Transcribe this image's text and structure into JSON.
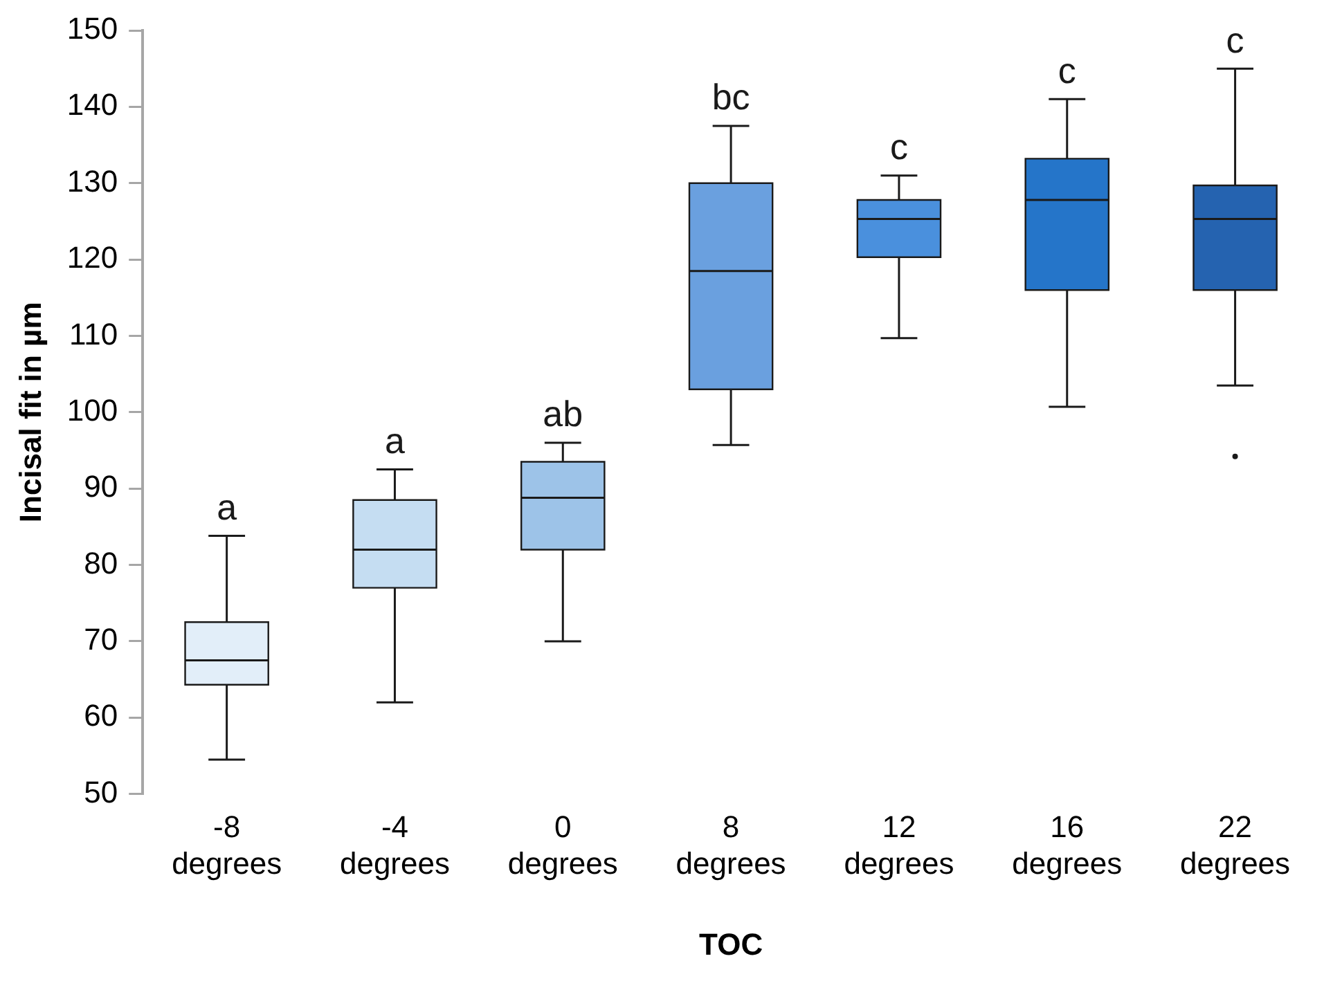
{
  "chart_data": {
    "type": "box",
    "xlabel": "TOC",
    "ylabel": "Incisal fit in µm",
    "categories": [
      "-8 degrees",
      "-4 degrees",
      "0 degrees",
      "8 degrees",
      "12 degrees",
      "16 degrees",
      "22 degrees"
    ],
    "colors": [
      "#e2eef9",
      "#c5ddf2",
      "#9dc3e8",
      "#6aa0df",
      "#4a90dd",
      "#2575c9",
      "#2563b0"
    ],
    "boxes": [
      {
        "low": 54.5,
        "q1": 64.3,
        "median": 67.5,
        "q3": 72.5,
        "high": 83.8
      },
      {
        "low": 62,
        "q1": 77,
        "median": 82,
        "q3": 88.5,
        "high": 92.5
      },
      {
        "low": 70,
        "q1": 82,
        "median": 88.8,
        "q3": 93.5,
        "high": 96
      },
      {
        "low": 95.7,
        "q1": 103,
        "median": 118.5,
        "q3": 130,
        "high": 137.5
      },
      {
        "low": 109.7,
        "q1": 120.3,
        "median": 125.3,
        "q3": 127.8,
        "high": 131
      },
      {
        "low": 100.7,
        "q1": 116,
        "median": 127.8,
        "q3": 133.2,
        "high": 141
      },
      {
        "low": 103.5,
        "q1": 116,
        "median": 125.3,
        "q3": 129.7,
        "high": 145,
        "outliers": [
          94.2
        ]
      }
    ],
    "annotations": [
      "a",
      "a",
      "ab",
      "bc",
      "c",
      "c",
      "c"
    ],
    "ylim": [
      50,
      150
    ],
    "yticks": [
      50,
      60,
      70,
      80,
      90,
      100,
      110,
      120,
      130,
      140,
      150
    ],
    "grid": false,
    "legend": false
  }
}
